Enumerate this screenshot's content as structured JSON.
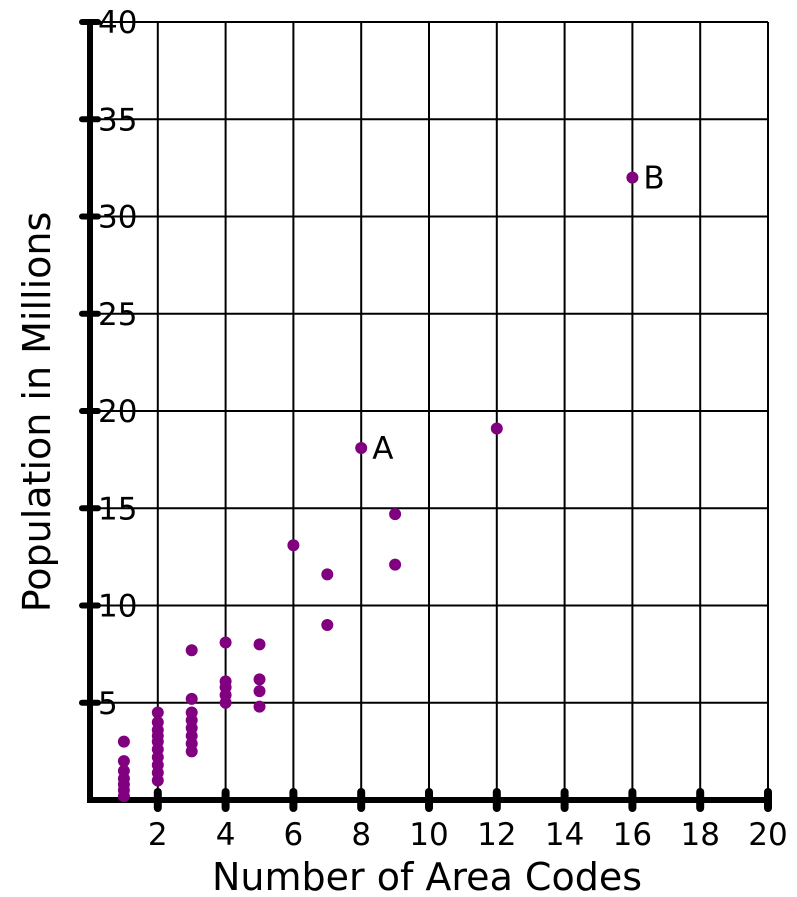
{
  "chart_data": {
    "type": "scatter",
    "title": "",
    "xlabel": "Number of Area Codes",
    "ylabel": "Population in Millions",
    "xlim": [
      0,
      20
    ],
    "ylim": [
      0,
      40
    ],
    "x_ticks": [
      2,
      4,
      6,
      8,
      10,
      12,
      14,
      16,
      18,
      20
    ],
    "x_tick_labels": [
      "2",
      "4",
      "6",
      "8",
      "10",
      "12",
      "14",
      "16",
      "18",
      "20"
    ],
    "y_ticks": [
      5,
      10,
      15,
      20,
      25,
      30,
      35,
      40
    ],
    "y_tick_labels": [
      "5",
      "10",
      "15",
      "20",
      "25",
      "30",
      "35",
      "40"
    ],
    "grid": true,
    "legend": "none",
    "colors": {
      "points": "#800080",
      "grid": "#000000",
      "axes": "#000000"
    },
    "points": [
      {
        "x": 1,
        "y": 0.2
      },
      {
        "x": 1,
        "y": 0.5
      },
      {
        "x": 1,
        "y": 0.8
      },
      {
        "x": 1,
        "y": 1.1
      },
      {
        "x": 1,
        "y": 1.5
      },
      {
        "x": 1,
        "y": 2.0
      },
      {
        "x": 1,
        "y": 3.0
      },
      {
        "x": 2,
        "y": 1.0
      },
      {
        "x": 2,
        "y": 1.4
      },
      {
        "x": 2,
        "y": 1.8
      },
      {
        "x": 2,
        "y": 2.2
      },
      {
        "x": 2,
        "y": 2.6
      },
      {
        "x": 2,
        "y": 3.0
      },
      {
        "x": 2,
        "y": 3.3
      },
      {
        "x": 2,
        "y": 3.6
      },
      {
        "x": 2,
        "y": 4.0
      },
      {
        "x": 2,
        "y": 4.5
      },
      {
        "x": 3,
        "y": 2.5
      },
      {
        "x": 3,
        "y": 2.9
      },
      {
        "x": 3,
        "y": 3.3
      },
      {
        "x": 3,
        "y": 3.7
      },
      {
        "x": 3,
        "y": 4.1
      },
      {
        "x": 3,
        "y": 4.5
      },
      {
        "x": 3,
        "y": 5.2
      },
      {
        "x": 3,
        "y": 7.7
      },
      {
        "x": 4,
        "y": 5.0
      },
      {
        "x": 4,
        "y": 5.4
      },
      {
        "x": 4,
        "y": 5.8
      },
      {
        "x": 4,
        "y": 6.1
      },
      {
        "x": 4,
        "y": 8.1
      },
      {
        "x": 5,
        "y": 4.8
      },
      {
        "x": 5,
        "y": 5.6
      },
      {
        "x": 5,
        "y": 6.2
      },
      {
        "x": 5,
        "y": 8.0
      },
      {
        "x": 6,
        "y": 13.1
      },
      {
        "x": 7,
        "y": 9.0
      },
      {
        "x": 7,
        "y": 11.6
      },
      {
        "x": 8,
        "y": 18.1,
        "label": "A"
      },
      {
        "x": 9,
        "y": 12.1
      },
      {
        "x": 9,
        "y": 14.7
      },
      {
        "x": 12,
        "y": 19.1
      },
      {
        "x": 16,
        "y": 32.0,
        "label": "B"
      }
    ]
  }
}
